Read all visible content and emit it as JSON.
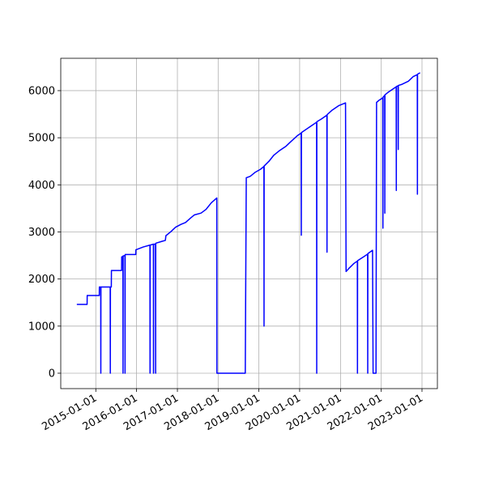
{
  "chart_data": {
    "type": "line",
    "color": "#0000ff",
    "grid": true,
    "x": [
      "2014-07-15",
      "2014-10-15",
      "2014-10-16",
      "2015-02-01",
      "2015-02-02",
      "2015-02-14",
      "2015-02-15",
      "2015-02-16",
      "2015-05-10",
      "2015-05-11",
      "2015-05-12",
      "2015-05-20",
      "2015-05-21",
      "2015-08-20",
      "2015-08-21",
      "2015-09-01",
      "2015-09-02",
      "2015-09-03",
      "2015-09-19",
      "2015-09-20",
      "2015-09-21",
      "2015-12-25",
      "2015-12-26",
      "2016-03-01",
      "2016-04-30",
      "2016-05-01",
      "2016-05-02",
      "2016-05-31",
      "2016-06-01",
      "2016-06-02",
      "2016-06-19",
      "2016-06-20",
      "2016-06-21",
      "2016-08-15",
      "2016-09-15",
      "2016-09-20",
      "2016-11-01",
      "2016-12-15",
      "2017-02-01",
      "2017-03-15",
      "2017-05-01",
      "2017-06-01",
      "2017-08-01",
      "2017-09-15",
      "2017-11-01",
      "2017-12-20",
      "2017-12-21",
      "2018-09-01",
      "2018-09-10",
      "2018-10-15",
      "2018-12-01",
      "2019-01-15",
      "2019-02-15",
      "2019-02-16",
      "2019-02-17",
      "2019-04-01",
      "2019-05-15",
      "2019-07-01",
      "2019-09-01",
      "2019-10-15",
      "2019-12-15",
      "2020-01-15",
      "2020-01-16",
      "2020-01-17",
      "2020-05-01",
      "2020-06-01",
      "2020-06-02",
      "2020-06-03",
      "2020-07-15",
      "2020-09-01",
      "2020-09-02",
      "2020-09-03",
      "2020-10-15",
      "2020-12-15",
      "2021-02-15",
      "2021-02-20",
      "2021-03-15",
      "2021-05-01",
      "2021-06-01",
      "2021-06-02",
      "2021-06-03",
      "2021-08-01",
      "2021-09-01",
      "2021-09-02",
      "2021-09-03",
      "2021-10-15",
      "2021-10-20",
      "2021-11-15",
      "2021-11-20",
      "2021-12-15",
      "2022-01-15",
      "2022-01-16",
      "2022-01-17",
      "2022-02-01",
      "2022-02-02",
      "2022-02-03",
      "2022-03-01",
      "2022-05-01",
      "2022-05-15",
      "2022-05-16",
      "2022-05-17",
      "2022-06-01",
      "2022-06-02",
      "2022-06-03",
      "2022-07-01",
      "2022-09-01",
      "2022-10-15",
      "2022-11-20",
      "2022-11-21",
      "2022-11-22",
      "2022-12-15"
    ],
    "values": [
      1460,
      1460,
      1650,
      1650,
      1830,
      1830,
      0,
      1830,
      1830,
      0,
      1830,
      1830,
      2180,
      2180,
      2470,
      2480,
      0,
      2490,
      2500,
      0,
      2520,
      2520,
      2620,
      2680,
      2720,
      0,
      2720,
      2740,
      0,
      2740,
      2740,
      0,
      2760,
      2800,
      2820,
      2920,
      3000,
      3100,
      3160,
      3200,
      3300,
      3360,
      3400,
      3480,
      3620,
      3720,
      0,
      0,
      4150,
      4180,
      4270,
      4330,
      4390,
      1000,
      4400,
      4500,
      4630,
      4720,
      4820,
      4920,
      5050,
      5100,
      2930,
      5110,
      5280,
      5330,
      0,
      5340,
      5400,
      5480,
      2570,
      5490,
      5580,
      5680,
      5740,
      2160,
      2220,
      2330,
      2380,
      0,
      2390,
      2480,
      2530,
      0,
      2540,
      2610,
      0,
      0,
      5750,
      5800,
      5850,
      3080,
      5860,
      5900,
      3400,
      5910,
      5960,
      6060,
      6080,
      3880,
      6090,
      6100,
      4750,
      6110,
      6130,
      6200,
      6300,
      6340,
      3800,
      6350,
      6380
    ],
    "xlim": [
      "2014-02-21",
      "2023-05-19"
    ],
    "xticks": [
      "2015-01-01",
      "2016-01-01",
      "2017-01-01",
      "2018-01-01",
      "2019-01-01",
      "2020-01-01",
      "2021-01-01",
      "2022-01-01",
      "2023-01-01"
    ],
    "ylim": [
      -327,
      6687
    ],
    "yticks": [
      0,
      1000,
      2000,
      3000,
      4000,
      5000,
      6000
    ]
  }
}
